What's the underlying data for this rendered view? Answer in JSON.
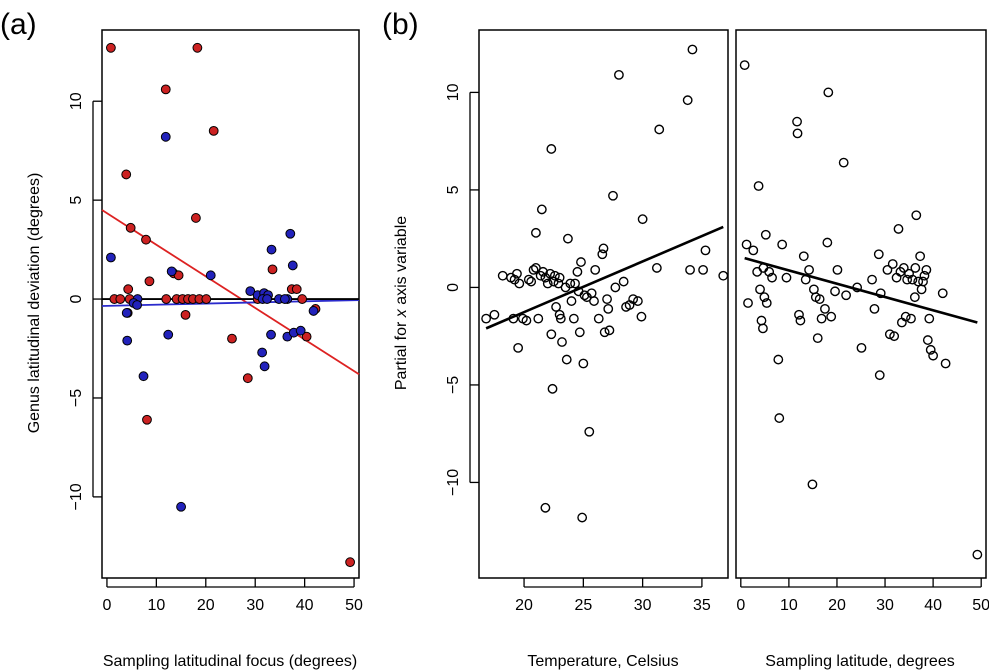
{
  "chart_data": [
    {
      "type": "scatter",
      "panel_label": "(a)",
      "xlabel": "Sampling latitudinal focus (degrees)",
      "ylabel": "Genus latitudinal deviation (degrees)",
      "xlim": [
        -1,
        51
      ],
      "ylim": [
        -14.1,
        13.6
      ],
      "xticks": [
        0,
        10,
        20,
        30,
        40,
        50
      ],
      "yticks": [
        -10,
        -5,
        0,
        5,
        10
      ],
      "grid": false,
      "series": [
        {
          "color": "#cc2222",
          "points": [
            [
              0.8,
              12.7
            ],
            [
              18.3,
              12.7
            ],
            [
              11.9,
              10.6
            ],
            [
              21.6,
              8.5
            ],
            [
              3.9,
              6.3
            ],
            [
              4.8,
              3.6
            ],
            [
              18.0,
              4.1
            ],
            [
              7.9,
              3.0
            ],
            [
              4.3,
              0.5
            ],
            [
              8.6,
              0.9
            ],
            [
              13.5,
              1.3
            ],
            [
              14.5,
              1.2
            ],
            [
              1.5,
              0.0
            ],
            [
              2.7,
              0.0
            ],
            [
              4.6,
              0.0
            ],
            [
              12.0,
              0.0
            ],
            [
              14.1,
              0.0
            ],
            [
              15.3,
              0.0
            ],
            [
              16.4,
              0.0
            ],
            [
              17.4,
              0.0
            ],
            [
              18.7,
              0.0
            ],
            [
              20.1,
              0.0
            ],
            [
              15.9,
              -0.8
            ],
            [
              4.2,
              -0.7
            ],
            [
              8.1,
              -6.1
            ],
            [
              25.3,
              -2.0
            ],
            [
              28.5,
              -4.0
            ],
            [
              33.5,
              1.5
            ],
            [
              37.4,
              0.5
            ],
            [
              38.4,
              0.5
            ],
            [
              39.5,
              0.0
            ],
            [
              30.5,
              0.0
            ],
            [
              40.4,
              -1.9
            ],
            [
              42.2,
              -0.5
            ],
            [
              49.2,
              -13.3
            ]
          ]
        },
        {
          "color": "#2222bb",
          "points": [
            [
              11.9,
              8.2
            ],
            [
              0.8,
              2.1
            ],
            [
              21.0,
              1.2
            ],
            [
              13.1,
              1.4
            ],
            [
              33.3,
              2.5
            ],
            [
              37.1,
              3.3
            ],
            [
              37.6,
              1.7
            ],
            [
              29.0,
              0.4
            ],
            [
              30.5,
              0.2
            ],
            [
              31.8,
              0.3
            ],
            [
              32.6,
              0.2
            ],
            [
              34.8,
              0.0
            ],
            [
              36.5,
              0.0
            ],
            [
              31.5,
              0.0
            ],
            [
              32.4,
              0.0
            ],
            [
              36.0,
              0.0
            ],
            [
              6.2,
              0.0
            ],
            [
              5.4,
              -0.2
            ],
            [
              4.0,
              -0.7
            ],
            [
              6.1,
              -0.3
            ],
            [
              12.4,
              -1.8
            ],
            [
              4.1,
              -2.1
            ],
            [
              7.4,
              -3.9
            ],
            [
              33.2,
              -1.8
            ],
            [
              36.5,
              -1.9
            ],
            [
              37.8,
              -1.7
            ],
            [
              39.2,
              -1.6
            ],
            [
              41.8,
              -0.6
            ],
            [
              31.4,
              -2.7
            ],
            [
              31.9,
              -3.4
            ],
            [
              15.0,
              -10.5
            ]
          ]
        }
      ],
      "lines": [
        {
          "color": "#dd2222",
          "x": [
            -1,
            51
          ],
          "y": [
            4.5,
            -3.8
          ]
        },
        {
          "color": "#2a2acc",
          "x": [
            -1,
            51
          ],
          "y": [
            -0.35,
            -0.05
          ]
        },
        {
          "color": "#000000",
          "x": [
            -1,
            51
          ],
          "y": [
            0.0,
            0.0
          ]
        }
      ]
    },
    {
      "type": "scatter",
      "panel_label": "(b)",
      "xlabel": "Temperature, Celsius",
      "ylabel": "Partial for x axis variable",
      "xlim": [
        16.2,
        37.2
      ],
      "ylim": [
        -14.9,
        13.2
      ],
      "xticks": [
        20,
        25,
        30,
        35
      ],
      "yticks": [
        -10,
        -5,
        0,
        5,
        10
      ],
      "grid": false,
      "points": [
        [
          16.8,
          -1.6
        ],
        [
          17.5,
          -1.4
        ],
        [
          18.2,
          0.6
        ],
        [
          18.9,
          0.5
        ],
        [
          19.2,
          0.4
        ],
        [
          19.4,
          0.7
        ],
        [
          19.6,
          0.2
        ],
        [
          19.1,
          -1.6
        ],
        [
          19.5,
          -3.1
        ],
        [
          19.9,
          -1.6
        ],
        [
          20.2,
          -1.7
        ],
        [
          20.4,
          0.4
        ],
        [
          20.6,
          0.3
        ],
        [
          20.8,
          0.9
        ],
        [
          21.0,
          1.0
        ],
        [
          21.0,
          2.8
        ],
        [
          21.2,
          -1.6
        ],
        [
          21.4,
          0.6
        ],
        [
          21.5,
          4.0
        ],
        [
          21.6,
          0.8
        ],
        [
          21.8,
          0.5
        ],
        [
          22.0,
          0.2
        ],
        [
          22.2,
          0.7
        ],
        [
          22.3,
          7.1
        ],
        [
          22.3,
          -2.4
        ],
        [
          22.4,
          -5.2
        ],
        [
          22.5,
          0.3
        ],
        [
          22.6,
          0.6
        ],
        [
          22.7,
          -1.0
        ],
        [
          22.9,
          0.2
        ],
        [
          23.0,
          0.5
        ],
        [
          23.0,
          -1.4
        ],
        [
          23.1,
          -1.6
        ],
        [
          23.2,
          -2.8
        ],
        [
          23.5,
          0.0
        ],
        [
          23.6,
          -3.7
        ],
        [
          23.7,
          2.5
        ],
        [
          23.9,
          0.2
        ],
        [
          24.0,
          -0.7
        ],
        [
          24.2,
          -1.6
        ],
        [
          24.3,
          0.2
        ],
        [
          24.5,
          0.8
        ],
        [
          24.6,
          -0.2
        ],
        [
          24.7,
          -2.3
        ],
        [
          24.8,
          1.3
        ],
        [
          25.0,
          -3.9
        ],
        [
          25.1,
          -0.4
        ],
        [
          25.3,
          -0.5
        ],
        [
          25.5,
          -7.4
        ],
        [
          25.7,
          -0.3
        ],
        [
          25.9,
          -0.7
        ],
        [
          26.0,
          0.9
        ],
        [
          26.3,
          -1.6
        ],
        [
          26.6,
          1.7
        ],
        [
          26.7,
          2.0
        ],
        [
          26.8,
          -2.3
        ],
        [
          27.0,
          -0.6
        ],
        [
          27.1,
          -1.1
        ],
        [
          27.2,
          -2.2
        ],
        [
          27.5,
          4.7
        ],
        [
          27.7,
          0.0
        ],
        [
          28.0,
          10.9
        ],
        [
          28.4,
          0.3
        ],
        [
          28.6,
          -1.0
        ],
        [
          28.9,
          -0.9
        ],
        [
          29.2,
          -0.6
        ],
        [
          29.6,
          -0.7
        ],
        [
          29.9,
          -1.5
        ],
        [
          30.0,
          3.5
        ],
        [
          31.2,
          1.0
        ],
        [
          31.4,
          8.1
        ],
        [
          33.8,
          9.6
        ],
        [
          34.0,
          0.9
        ],
        [
          34.2,
          12.2
        ],
        [
          35.1,
          0.9
        ],
        [
          35.3,
          1.9
        ],
        [
          36.8,
          0.6
        ],
        [
          21.8,
          -11.3
        ],
        [
          24.9,
          -11.8
        ]
      ],
      "lines": [
        {
          "color": "#000000",
          "x": [
            16.8,
            36.8
          ],
          "y": [
            -2.1,
            3.1
          ]
        }
      ]
    },
    {
      "type": "scatter",
      "xlabel": "Sampling latitude, degrees",
      "xlim": [
        -1,
        51
      ],
      "ylim": [
        -14.9,
        13.2
      ],
      "xticks": [
        0,
        10,
        20,
        30,
        40,
        50
      ],
      "grid": false,
      "points": [
        [
          0.8,
          11.4
        ],
        [
          1.2,
          2.2
        ],
        [
          1.5,
          -0.8
        ],
        [
          2.6,
          1.9
        ],
        [
          3.4,
          0.8
        ],
        [
          3.7,
          5.2
        ],
        [
          4.0,
          -0.1
        ],
        [
          4.3,
          -1.7
        ],
        [
          4.6,
          -2.1
        ],
        [
          4.7,
          1.0
        ],
        [
          4.9,
          -0.5
        ],
        [
          5.2,
          2.7
        ],
        [
          5.4,
          -0.8
        ],
        [
          5.9,
          0.8
        ],
        [
          6.5,
          0.5
        ],
        [
          7.8,
          -3.7
        ],
        [
          8.0,
          -6.7
        ],
        [
          8.6,
          2.2
        ],
        [
          9.5,
          0.5
        ],
        [
          11.7,
          8.5
        ],
        [
          11.8,
          7.9
        ],
        [
          12.1,
          -1.4
        ],
        [
          12.4,
          -1.7
        ],
        [
          13.1,
          1.6
        ],
        [
          13.5,
          0.4
        ],
        [
          14.2,
          0.9
        ],
        [
          14.9,
          -10.1
        ],
        [
          15.2,
          -0.1
        ],
        [
          15.6,
          -0.5
        ],
        [
          16.0,
          -2.6
        ],
        [
          16.4,
          -0.6
        ],
        [
          16.8,
          -1.6
        ],
        [
          17.5,
          -1.1
        ],
        [
          18.0,
          2.3
        ],
        [
          18.2,
          10.0
        ],
        [
          18.8,
          -1.5
        ],
        [
          19.6,
          -0.2
        ],
        [
          20.1,
          0.9
        ],
        [
          21.4,
          6.4
        ],
        [
          21.9,
          -0.4
        ],
        [
          24.2,
          0.0
        ],
        [
          25.1,
          -3.1
        ],
        [
          27.3,
          0.4
        ],
        [
          27.8,
          -1.1
        ],
        [
          28.7,
          1.7
        ],
        [
          28.9,
          -4.5
        ],
        [
          29.1,
          -0.3
        ],
        [
          30.5,
          0.9
        ],
        [
          31.0,
          -2.4
        ],
        [
          31.6,
          1.2
        ],
        [
          31.9,
          -2.5
        ],
        [
          32.4,
          0.5
        ],
        [
          32.8,
          3.0
        ],
        [
          33.2,
          0.8
        ],
        [
          33.5,
          -1.8
        ],
        [
          33.9,
          1.0
        ],
        [
          34.3,
          -1.5
        ],
        [
          34.6,
          0.4
        ],
        [
          35.0,
          0.7
        ],
        [
          35.4,
          -1.6
        ],
        [
          35.7,
          0.4
        ],
        [
          36.2,
          -0.5
        ],
        [
          36.3,
          1.0
        ],
        [
          36.5,
          3.7
        ],
        [
          36.9,
          0.3
        ],
        [
          37.3,
          1.6
        ],
        [
          37.6,
          -0.1
        ],
        [
          37.9,
          0.3
        ],
        [
          38.2,
          0.6
        ],
        [
          38.6,
          0.9
        ],
        [
          38.9,
          -2.7
        ],
        [
          39.2,
          -1.6
        ],
        [
          39.5,
          -3.2
        ],
        [
          40.0,
          -3.5
        ],
        [
          42.0,
          -0.3
        ],
        [
          42.6,
          -3.9
        ],
        [
          49.2,
          -13.7
        ]
      ],
      "lines": [
        {
          "color": "#000000",
          "x": [
            0.8,
            49.2
          ],
          "y": [
            1.5,
            -1.8
          ]
        }
      ]
    }
  ]
}
